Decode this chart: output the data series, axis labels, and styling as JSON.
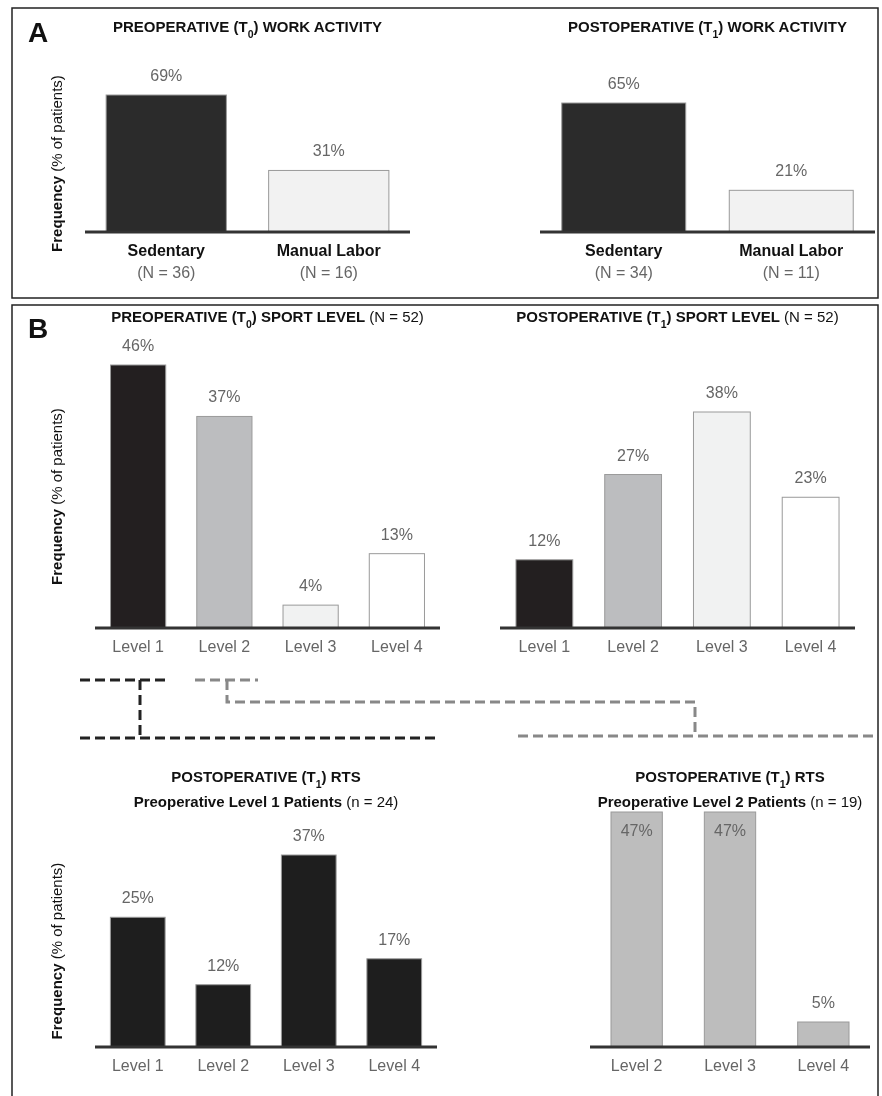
{
  "chart_data": [
    {
      "type": "bar",
      "title": "PREOPERATIVE (T$_{0}$) WORK ACTIVITY",
      "ylabel": "Frequency  (% of patients)",
      "annotations": [
        "A"
      ],
      "categories": [
        "Sedentary\n(N = 36)",
        "Manual Labor\n(N = 16)"
      ],
      "values": [
        69,
        31
      ],
      "value_labels": [
        "69%",
        "31%"
      ],
      "colors": [
        "#2b2b2b",
        "#f2f2f2"
      ]
    },
    {
      "type": "bar",
      "title": "POSTOPERATIVE (T$_{1}$) WORK ACTIVITY",
      "categories": [
        "Sedentary\n(N = 34)",
        "Manual Labor\n(N = 11)"
      ],
      "values": [
        65,
        21
      ],
      "value_labels": [
        "65%",
        "21%"
      ],
      "colors": [
        "#2b2b2b",
        "#f2f2f2"
      ]
    },
    {
      "type": "bar",
      "title": "PREOPERATIVE (T$_{0}$) SPORT LEVEL (N = 52)",
      "ylabel": "Frequency  (% of patients)",
      "annotations": [
        "B"
      ],
      "categories": [
        "Level 1",
        "Level 2",
        "Level 3",
        "Level 4"
      ],
      "values": [
        46,
        37,
        4,
        13
      ],
      "value_labels": [
        "46%",
        "37%",
        "4%",
        "13%"
      ],
      "colors": [
        "#231f20",
        "#bcbdbf",
        "#f1f2f2",
        "#ffffff"
      ]
    },
    {
      "type": "bar",
      "title": "POSTOPERATIVE (T$_{1}$) SPORT LEVEL (N = 52)",
      "categories": [
        "Level 1",
        "Level 2",
        "Level 3",
        "Level 4"
      ],
      "values": [
        12,
        27,
        38,
        23
      ],
      "value_labels": [
        "12%",
        "27%",
        "38%",
        "23%"
      ],
      "colors": [
        "#231f20",
        "#bcbdbf",
        "#f1f2f2",
        "#ffffff"
      ]
    },
    {
      "type": "bar",
      "title": "POSTOPERATIVE (T$_{1}$) RTS",
      "subtitle": "Preoperative Level 1 Patients (n = 24)",
      "ylabel": "Frequency  (% of patients)",
      "categories": [
        "Level 1",
        "Level 2",
        "Level 3",
        "Level 4"
      ],
      "values": [
        25,
        12,
        37,
        17
      ],
      "value_labels": [
        "25%",
        "12%",
        "37%",
        "17%"
      ],
      "colors": [
        "#1e1e1e",
        "#1e1e1e",
        "#1e1e1e",
        "#1e1e1e"
      ]
    },
    {
      "type": "bar",
      "title": "POSTOPERATIVE (T$_{1}$) RTS",
      "subtitle": "Preoperative Level 2 Patients (n = 19)",
      "categories": [
        "Level 2",
        "Level 3",
        "Level 4"
      ],
      "values": [
        47,
        47,
        5
      ],
      "value_labels": [
        "47%",
        "47%",
        "5%"
      ],
      "colors": [
        "#bdbdbd",
        "#bdbdbd",
        "#bdbdbd"
      ]
    }
  ]
}
